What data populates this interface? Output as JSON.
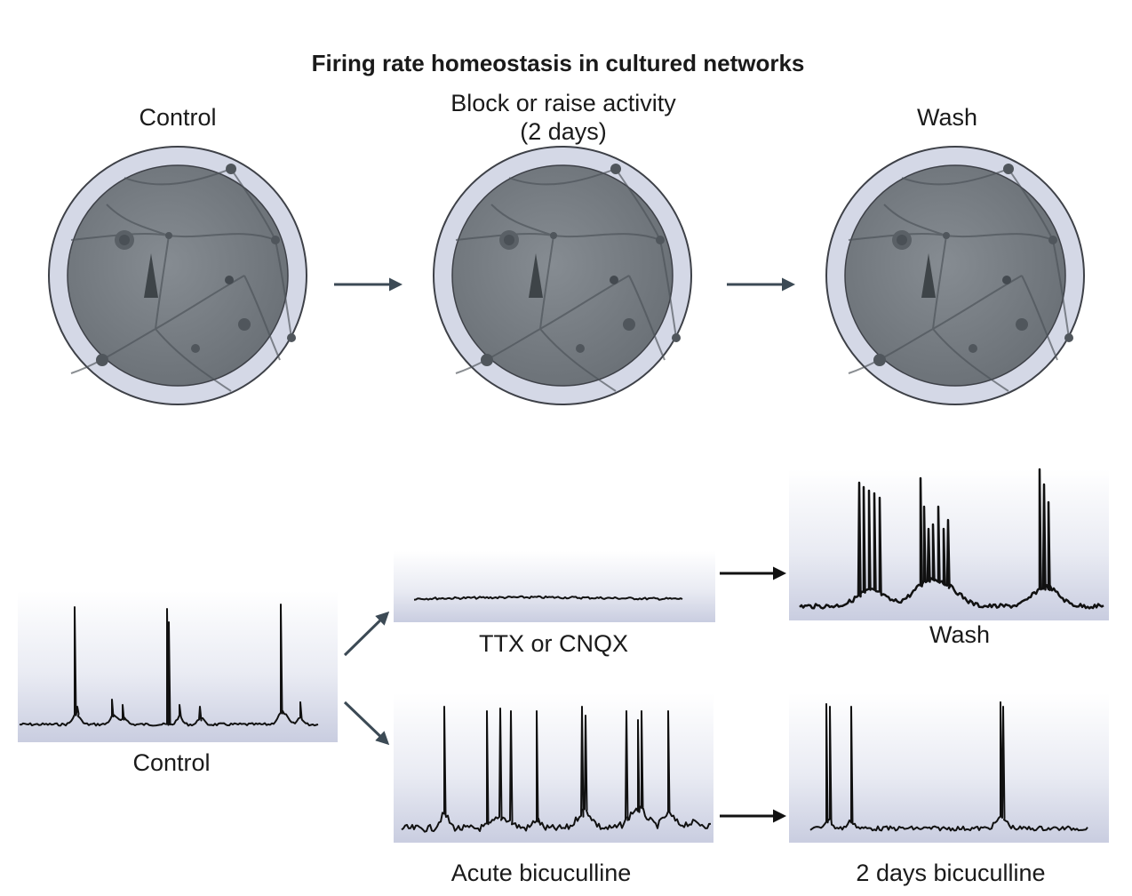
{
  "title": "Firing rate homeostasis in cultured networks",
  "top_row": {
    "stages": [
      {
        "label_lines": [
          "Control"
        ]
      },
      {
        "label_lines": [
          "Block or raise activity",
          "(2 days)"
        ]
      },
      {
        "label_lines": [
          "Wash"
        ]
      }
    ]
  },
  "traces": {
    "control": "Control",
    "ttx": "TTX or CNQX",
    "acute": "Acute bicuculline",
    "wash": "Wash",
    "chronic": "2 days bicuculline"
  },
  "colors": {
    "dish_ring": "#d4d8e6",
    "dish_outline": "#3e4148",
    "culture": "#757b82",
    "arrow_blue": "#3c4a55",
    "arrow_black": "#111111",
    "panel_top": "#ffffff",
    "panel_bottom": "#c9cde0",
    "trace": "#111111"
  }
}
